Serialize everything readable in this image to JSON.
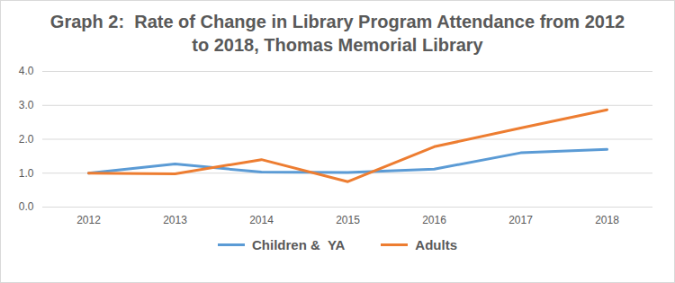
{
  "chart_data": {
    "type": "line",
    "title": "Graph 2:  Rate of Change in Library Program Attendance from 2012 to 2018, Thomas Memorial Library",
    "categories": [
      "2012",
      "2013",
      "2014",
      "2015",
      "2016",
      "2017",
      "2018"
    ],
    "series": [
      {
        "name": "Children &  YA",
        "color": "#5b9bd5",
        "values": [
          1.0,
          1.27,
          1.03,
          1.02,
          1.12,
          1.6,
          1.7
        ]
      },
      {
        "name": "Adults",
        "color": "#ed7d31",
        "values": [
          1.0,
          0.98,
          1.4,
          0.75,
          1.78,
          2.33,
          2.87
        ]
      }
    ],
    "ylim": [
      0,
      4
    ],
    "yticks": [
      {
        "value": 0,
        "label": "0.0"
      },
      {
        "value": 1,
        "label": "1.0"
      },
      {
        "value": 2,
        "label": "2.0"
      },
      {
        "value": 3,
        "label": "3.0"
      },
      {
        "value": 4,
        "label": "4.0"
      }
    ],
    "grid": true,
    "legend": "bottom"
  }
}
